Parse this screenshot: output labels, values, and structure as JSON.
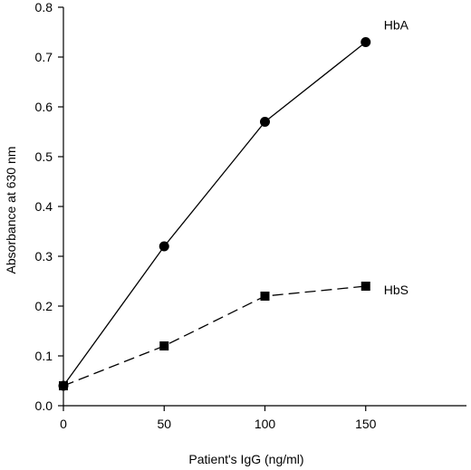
{
  "chart_data": {
    "type": "line",
    "xlabel": "Patient's IgG (ng/ml)",
    "ylabel": "Absorbance at 630 nm",
    "xlim": [
      0,
      200
    ],
    "ylim": [
      0,
      0.8
    ],
    "x_ticks": [
      0,
      50,
      100,
      150
    ],
    "x_tick_labels": [
      "0",
      "50",
      "100",
      "150"
    ],
    "y_ticks": [
      0,
      0.1,
      0.2,
      0.3,
      0.4,
      0.5,
      0.6,
      0.7,
      0.8
    ],
    "y_tick_labels": [
      "0.0",
      "0.1",
      "0.2",
      "0.3",
      "0.4",
      "0.5",
      "0.6",
      "0.7",
      "0.8"
    ],
    "grid": false,
    "series": [
      {
        "name": "HbA",
        "x": [
          0,
          50,
          100,
          150
        ],
        "values": [
          0.04,
          0.32,
          0.57,
          0.73
        ],
        "marker": "circle",
        "line_style": "solid",
        "color": "#000000"
      },
      {
        "name": "HbS",
        "x": [
          0,
          50,
          100,
          150
        ],
        "values": [
          0.04,
          0.12,
          0.22,
          0.24
        ],
        "marker": "square",
        "line_style": "dashed",
        "color": "#000000"
      }
    ]
  }
}
